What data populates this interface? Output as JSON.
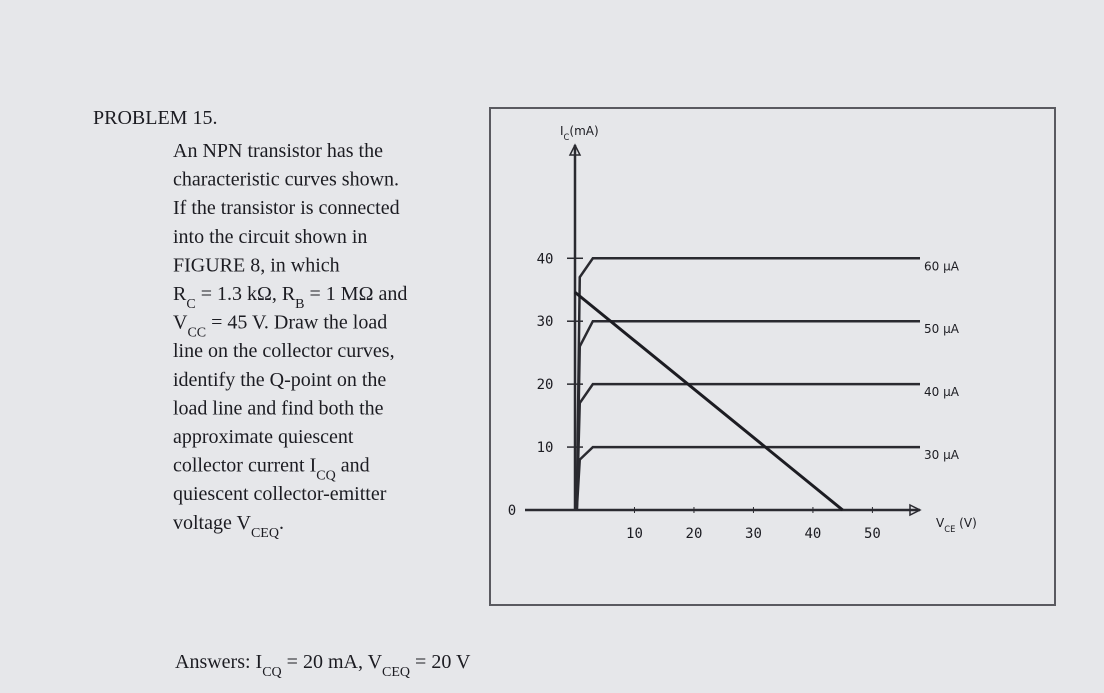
{
  "problem": {
    "title": "PROBLEM 15.",
    "lines": [
      [
        "An NPN transistor has the"
      ],
      [
        "characteristic curves shown."
      ],
      [
        "If the transistor is connected"
      ],
      [
        "into the circuit shown in"
      ],
      [
        "FIGURE 8, in which"
      ],
      [
        "R",
        {
          "sub": "C"
        },
        " = 1.3 kΩ, R",
        {
          "sub": "B"
        },
        " = 1 MΩ and"
      ],
      [
        "V",
        {
          "sub": "CC"
        },
        " = 45 V. Draw the load"
      ],
      [
        "line on the collector curves,"
      ],
      [
        "identify the Q-point on the"
      ],
      [
        "load line and find both the"
      ],
      [
        "approximate quiescent"
      ],
      [
        "collector current I",
        {
          "sub": "CQ"
        },
        " and"
      ],
      [
        "quiescent collector-emitter"
      ],
      [
        "voltage V",
        {
          "sub": "CEQ"
        },
        "."
      ]
    ],
    "answers": [
      "Answers: I",
      {
        "sub": "CQ"
      },
      " = 20 mA, V",
      {
        "sub": "CEQ"
      },
      " = 20 V"
    ]
  },
  "chart_data": {
    "type": "line",
    "y_label": [
      "I",
      {
        "sub": "C"
      },
      "(mA)"
    ],
    "x_label": [
      "V",
      {
        "sub": "CE"
      },
      " (V)"
    ],
    "xlim": [
      0,
      58
    ],
    "ylim": [
      0,
      58
    ],
    "xticks": [
      10,
      20,
      30,
      40,
      50
    ],
    "yticks": [
      0,
      10,
      20,
      30,
      40
    ],
    "series": [
      {
        "name": "60 µA",
        "color": "#2a2a30",
        "x": [
          0.3,
          0.8,
          3,
          58
        ],
        "values": [
          0,
          37,
          40,
          40
        ]
      },
      {
        "name": "50 µA",
        "color": "#2a2a30",
        "x": [
          0.3,
          0.8,
          3,
          58
        ],
        "values": [
          0,
          26,
          30,
          30
        ]
      },
      {
        "name": "40 µA",
        "color": "#2a2a30",
        "x": [
          0.3,
          0.8,
          3,
          58
        ],
        "values": [
          0,
          17,
          20,
          20
        ]
      },
      {
        "name": "30 µA",
        "color": "#2a2a30",
        "x": [
          0.3,
          0.8,
          3,
          58
        ],
        "values": [
          0,
          8,
          10,
          10
        ]
      }
    ],
    "load_line": {
      "color": "#1c1c22",
      "x": [
        0,
        45
      ],
      "values": [
        34.6,
        0
      ]
    }
  }
}
